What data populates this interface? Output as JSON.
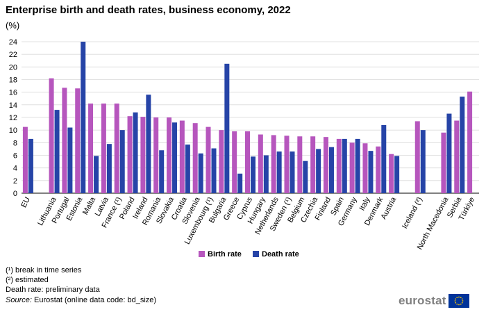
{
  "title": "Enterprise birth and death rates, business economy, 2022",
  "unit": "(%)",
  "footnotes": [
    "(¹) break in time series",
    "(²) estimated",
    "Death rate: preliminary data"
  ],
  "source": {
    "label": "Source:",
    "text": "Eurostat (online data code: bd_size)"
  },
  "logo_text": "eurostat",
  "colors": {
    "birth": "#B656BD",
    "death": "#2644A7",
    "grid": "#d9d9d9",
    "axis": "#000000"
  },
  "chart_data": {
    "type": "bar",
    "title": "Enterprise birth and death rates, business economy, 2022",
    "ylabel": "(%)",
    "xlabel": "",
    "ylim": [
      0,
      24
    ],
    "yticks": [
      0,
      2,
      4,
      6,
      8,
      10,
      12,
      14,
      16,
      18,
      20,
      22,
      24
    ],
    "grid": true,
    "legend": "bottom-center",
    "categories": [
      "EU",
      "",
      "Lithuania",
      "Portugal",
      "Estonia",
      "Malta",
      "Latvia",
      "France (¹)",
      "Poland",
      "Ireland",
      "Romania",
      "Slovakia",
      "Croatia",
      "Slovenia",
      "Luxembourg (¹)",
      "Bulgaria",
      "Greece",
      "Cyprus",
      "Hungary",
      "Netherlands",
      "Sweden (¹)",
      "Belgium",
      "Czechia",
      "Finland",
      "Spain",
      "Germany",
      "Italy",
      "Denmark",
      "Austria",
      "",
      "Iceland (²)",
      "",
      "North Macedonia",
      "Serbia",
      "Türkiye"
    ],
    "series": [
      {
        "name": "Birth rate",
        "values": [
          10.5,
          null,
          18.2,
          16.7,
          16.6,
          14.2,
          14.2,
          14.2,
          12.2,
          12.1,
          12.0,
          12.0,
          11.5,
          11.1,
          10.5,
          10.0,
          9.8,
          9.8,
          9.3,
          9.2,
          9.1,
          9.0,
          9.0,
          8.9,
          8.6,
          8.0,
          7.9,
          7.4,
          6.2,
          null,
          11.4,
          null,
          9.6,
          11.5,
          16.1
        ]
      },
      {
        "name": "Death rate",
        "values": [
          8.6,
          null,
          13.2,
          10.4,
          24.0,
          5.9,
          7.8,
          10.0,
          12.8,
          15.6,
          6.8,
          11.2,
          7.7,
          6.3,
          7.1,
          20.5,
          3.1,
          5.8,
          6.0,
          6.6,
          6.6,
          5.1,
          7.0,
          7.3,
          8.6,
          8.6,
          6.7,
          10.8,
          5.9,
          null,
          10.0,
          null,
          12.6,
          15.3,
          null
        ]
      }
    ]
  }
}
